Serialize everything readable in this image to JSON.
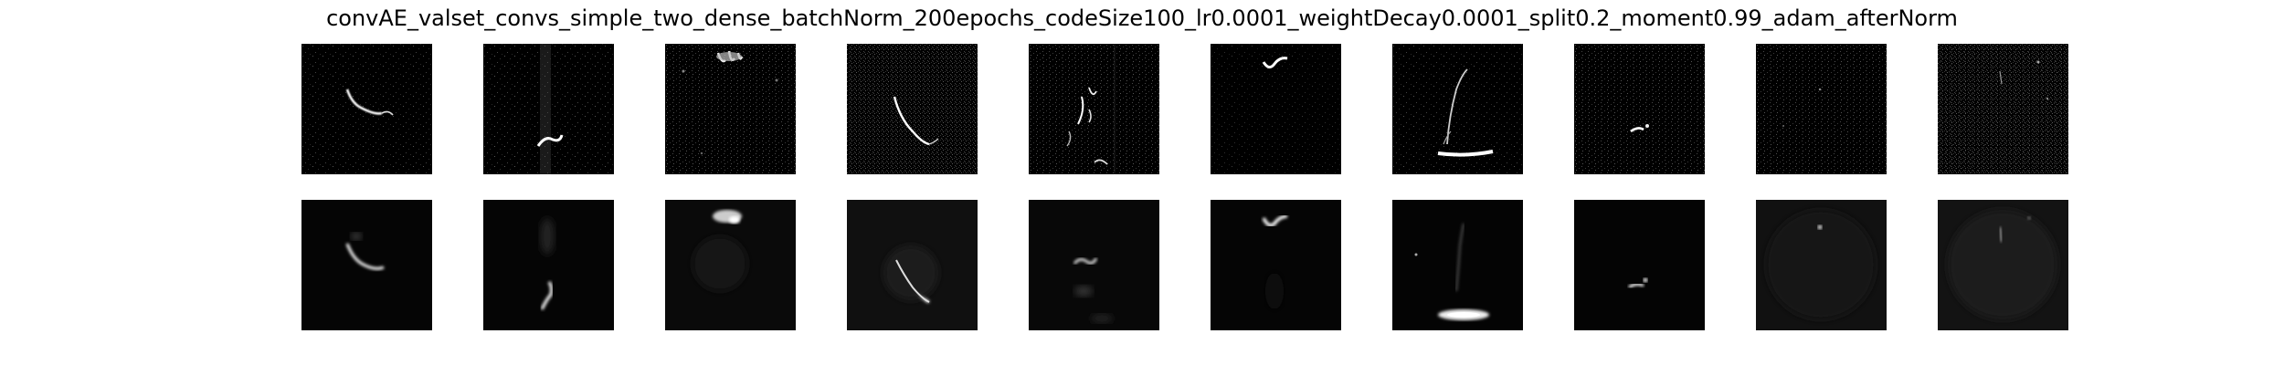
{
  "figure": {
    "title": "convAE_valset_convs_simple_two_dense_batchNorm_200epochs_codeSize100_lr0.0001_weightDecay0.0001_split0.2_moment0.99_adam_afterNorm"
  },
  "rows": [
    {
      "name": "input-row",
      "panels": [
        {
          "content": "bright curved streak, left-center",
          "noise": 0.55
        },
        {
          "content": "bright streak at bottom with faint vertical band",
          "noise": 0.5
        },
        {
          "content": "bright blob at top with faint marks",
          "noise": 0.6
        },
        {
          "content": "long diagonal curved streak",
          "noise": 0.7
        },
        {
          "content": "several small streaks",
          "noise": 0.6
        },
        {
          "content": "V-shaped mark at top",
          "noise": 0.35
        },
        {
          "content": "vertical arc with bright band at bottom",
          "noise": 0.5
        },
        {
          "content": "small bright mark, lower center",
          "noise": 0.6
        },
        {
          "content": "mostly noise",
          "noise": 0.7
        },
        {
          "content": "noise with faint marks",
          "noise": 0.9
        }
      ]
    },
    {
      "name": "reconstruction-row",
      "panels": [
        {
          "content": "smoothed curved streak, left-center",
          "noise": 0.05
        },
        {
          "content": "smoothed streak lower center",
          "noise": 0.05
        },
        {
          "content": "blurred blob at top",
          "noise": 0.08
        },
        {
          "content": "smoothed diagonal streak",
          "noise": 0.1
        },
        {
          "content": "blurred small streaks",
          "noise": 0.08
        },
        {
          "content": "V-shaped mark at top",
          "noise": 0.03
        },
        {
          "content": "faint arc with bright band at bottom",
          "noise": 0.06
        },
        {
          "content": "small bright mark, lower center",
          "noise": 0.03
        },
        {
          "content": "faint dot, upper center",
          "noise": 0.12
        },
        {
          "content": "faint mark, upper center",
          "noise": 0.12
        }
      ]
    }
  ]
}
